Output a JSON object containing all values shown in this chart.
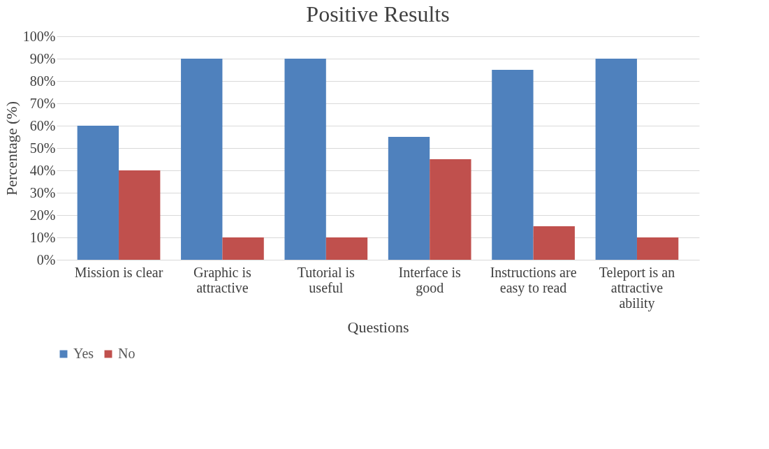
{
  "chart_data": {
    "type": "bar",
    "title": "Positive Results",
    "xlabel": "Questions",
    "ylabel": "Percentage (%)",
    "categories": [
      "Mission is clear",
      "Graphic is attractive",
      "Tutorial is useful",
      "Interface is good",
      "Instructions are easy to read",
      "Teleport is an attractive ability"
    ],
    "series": [
      {
        "name": "Yes",
        "color": "#4f81bd",
        "values": [
          60,
          90,
          90,
          55,
          85,
          90
        ]
      },
      {
        "name": "No",
        "color": "#c0504d",
        "values": [
          40,
          10,
          10,
          45,
          15,
          10
        ]
      }
    ],
    "ylim": [
      0,
      100
    ],
    "yticks": [
      {
        "value": 0,
        "label": "0%"
      },
      {
        "value": 10,
        "label": "10%"
      },
      {
        "value": 20,
        "label": "20%"
      },
      {
        "value": 30,
        "label": "30%"
      },
      {
        "value": 40,
        "label": "40%"
      },
      {
        "value": 50,
        "label": "50%"
      },
      {
        "value": 60,
        "label": "60%"
      },
      {
        "value": 70,
        "label": "70%"
      },
      {
        "value": 80,
        "label": "80%"
      },
      {
        "value": 90,
        "label": "90%"
      },
      {
        "value": 100,
        "label": "100%"
      }
    ],
    "grid": "y",
    "legend": "bottom"
  }
}
